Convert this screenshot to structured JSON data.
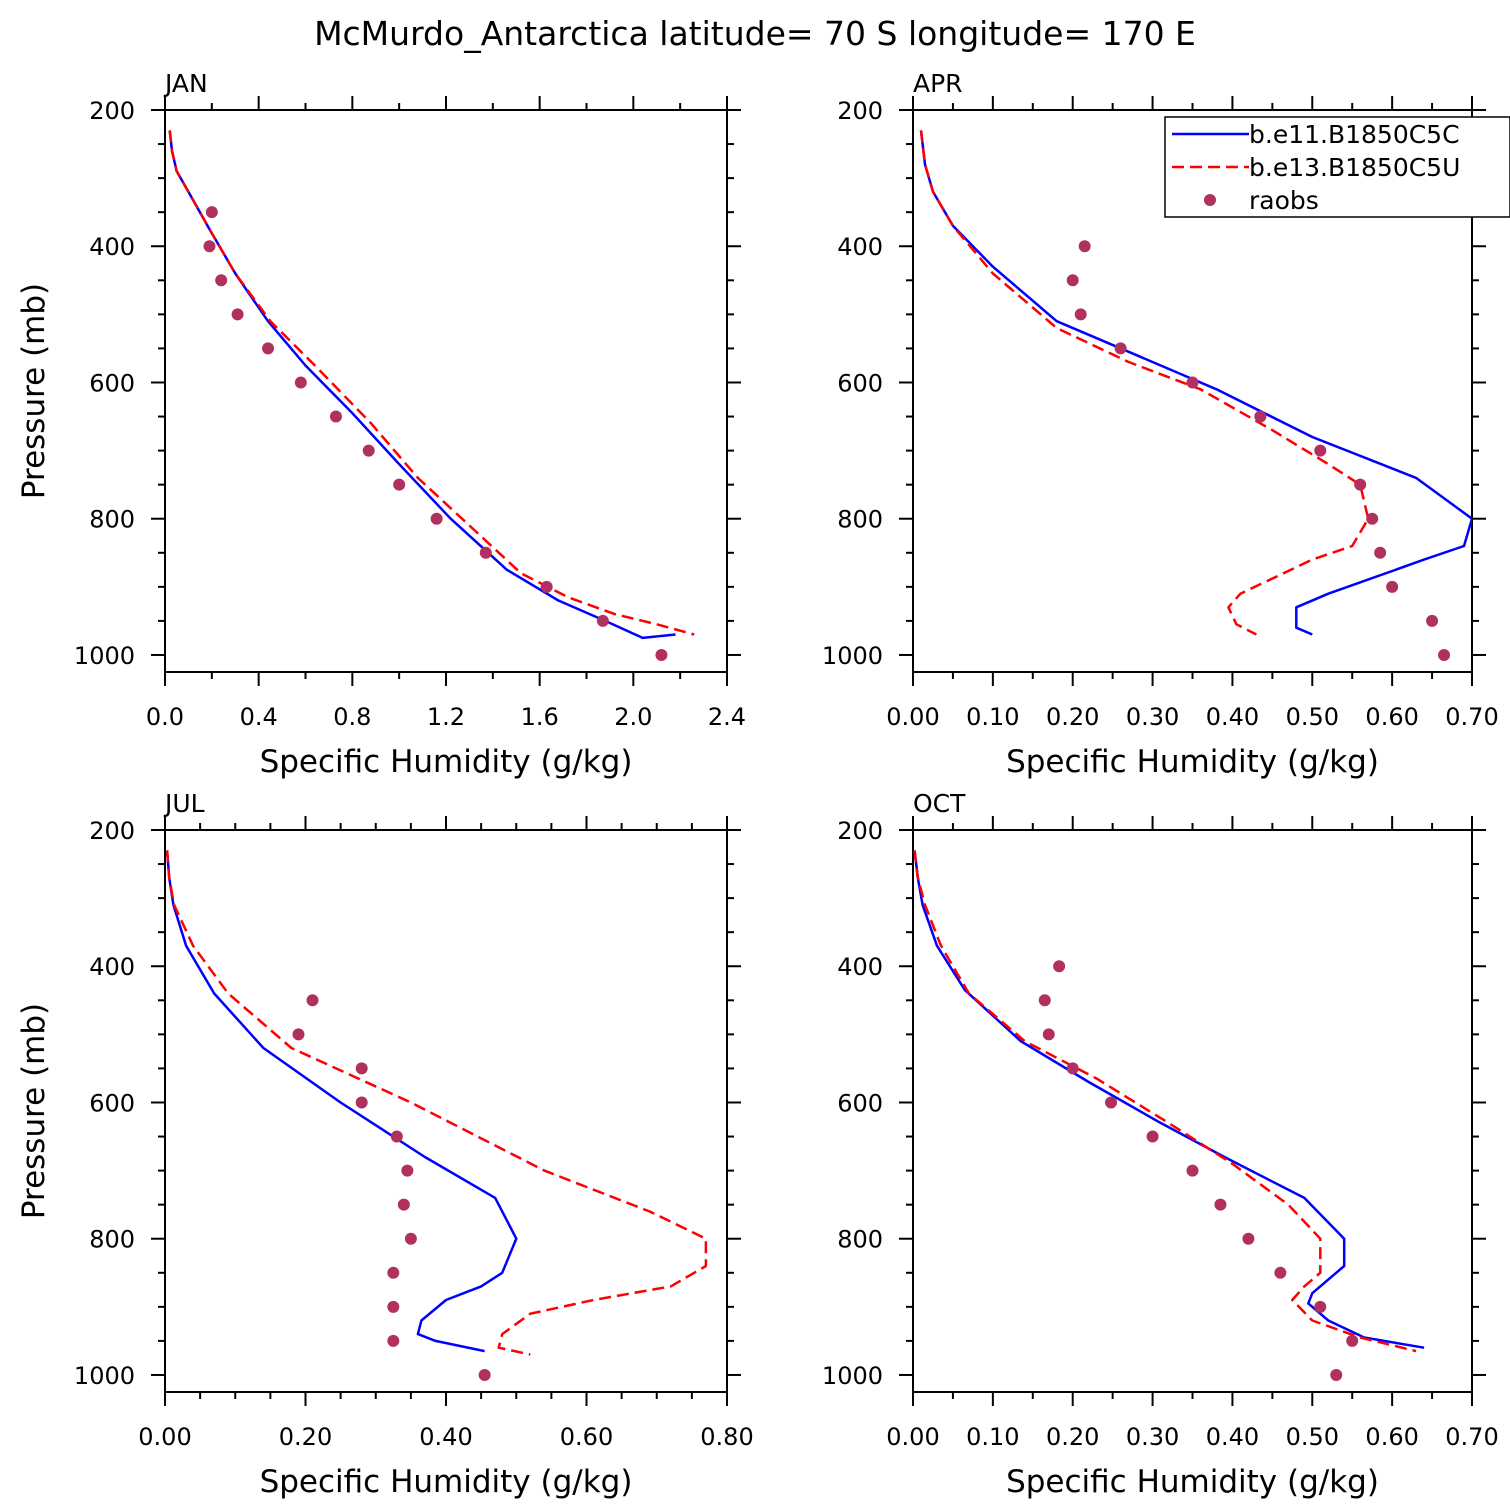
{
  "title": "McMurdo_Antarctica  latitude= 70 S longitude= 170 E",
  "colors": {
    "model1": "#0000ff",
    "model2": "#ff0000",
    "raobs": "#b03060"
  },
  "legend": {
    "placement": "top-right of APR panel",
    "entries": [
      {
        "label": "b.e11.B1850C5C",
        "style": "solid",
        "color": "#0000ff"
      },
      {
        "label": "b.e13.B1850C5U",
        "style": "dashed",
        "color": "#ff0000"
      },
      {
        "label": "raobs",
        "style": "marker",
        "color": "#b03060"
      }
    ]
  },
  "chart_data": [
    {
      "type": "line",
      "panel": "JAN",
      "xlabel": "Specific Humidity (g/kg)",
      "ylabel": "Pressure (mb)",
      "xlim": [
        0,
        2.4
      ],
      "ylim": [
        200,
        1025
      ],
      "y_inverted": true,
      "xticks": [
        "0.0",
        "0.4",
        "0.8",
        "1.2",
        "1.6",
        "2.0",
        "2.4"
      ],
      "yticks": [
        "200",
        "400",
        "600",
        "800",
        "1000"
      ],
      "series": [
        {
          "name": "b.e11.B1850C5C",
          "style": "solid",
          "x": [
            0.02,
            0.03,
            0.05,
            0.1,
            0.19,
            0.3,
            0.44,
            0.6,
            0.8,
            1.0,
            1.22,
            1.46,
            1.68,
            1.88,
            2.04,
            2.18
          ],
          "y": [
            230,
            260,
            290,
            320,
            375,
            440,
            510,
            575,
            645,
            720,
            800,
            875,
            920,
            950,
            975,
            970
          ]
        },
        {
          "name": "b.e13.B1850C5U",
          "style": "dashed",
          "x": [
            0.02,
            0.03,
            0.05,
            0.1,
            0.19,
            0.3,
            0.45,
            0.64,
            0.88,
            1.08,
            1.3,
            1.52,
            1.72,
            1.92,
            2.1,
            2.26
          ],
          "y": [
            230,
            260,
            290,
            320,
            375,
            440,
            510,
            575,
            660,
            740,
            810,
            880,
            915,
            940,
            955,
            970
          ]
        },
        {
          "name": "raobs",
          "style": "marker",
          "x": [
            0.2,
            0.19,
            0.24,
            0.31,
            0.44,
            0.58,
            0.73,
            0.87,
            1.0,
            1.16,
            1.37,
            1.63,
            1.87,
            2.12
          ],
          "y": [
            350,
            400,
            450,
            500,
            550,
            600,
            650,
            700,
            750,
            800,
            850,
            900,
            950,
            1000
          ]
        }
      ]
    },
    {
      "type": "line",
      "panel": "APR",
      "xlabel": "Specific Humidity (g/kg)",
      "ylabel": "",
      "xlim": [
        0,
        0.7
      ],
      "ylim": [
        200,
        1025
      ],
      "y_inverted": true,
      "xticks": [
        "0.00",
        "0.10",
        "0.20",
        "0.30",
        "0.40",
        "0.50",
        "0.60",
        "0.70"
      ],
      "yticks": [
        "200",
        "400",
        "600",
        "800",
        "1000"
      ],
      "series": [
        {
          "name": "b.e11.B1850C5C",
          "style": "solid",
          "x": [
            0.01,
            0.015,
            0.025,
            0.05,
            0.1,
            0.18,
            0.28,
            0.38,
            0.5,
            0.63,
            0.7,
            0.69,
            0.64,
            0.52,
            0.48,
            0.48,
            0.5
          ],
          "y": [
            230,
            280,
            320,
            370,
            430,
            510,
            560,
            610,
            680,
            740,
            800,
            840,
            860,
            910,
            930,
            960,
            970
          ]
        },
        {
          "name": "b.e13.B1850C5U",
          "style": "dashed",
          "x": [
            0.01,
            0.015,
            0.025,
            0.05,
            0.1,
            0.18,
            0.27,
            0.36,
            0.45,
            0.52,
            0.56,
            0.57,
            0.55,
            0.5,
            0.41,
            0.395,
            0.405,
            0.43
          ],
          "y": [
            230,
            280,
            320,
            370,
            440,
            520,
            570,
            610,
            670,
            720,
            750,
            800,
            840,
            860,
            910,
            930,
            955,
            970
          ]
        },
        {
          "name": "raobs",
          "style": "marker",
          "x": [
            0.215,
            0.2,
            0.21,
            0.26,
            0.35,
            0.435,
            0.51,
            0.56,
            0.575,
            0.585,
            0.6,
            0.65,
            0.665
          ],
          "y": [
            400,
            450,
            500,
            550,
            600,
            650,
            700,
            750,
            800,
            850,
            900,
            950,
            1000
          ]
        }
      ]
    },
    {
      "type": "line",
      "panel": "JUL",
      "xlabel": "Specific Humidity (g/kg)",
      "ylabel": "Pressure (mb)",
      "xlim": [
        0,
        0.8
      ],
      "ylim": [
        200,
        1025
      ],
      "y_inverted": true,
      "xticks": [
        "0.00",
        "0.20",
        "0.40",
        "0.60",
        "0.80"
      ],
      "yticks": [
        "200",
        "400",
        "600",
        "800",
        "1000"
      ],
      "series": [
        {
          "name": "b.e11.B1850C5C",
          "style": "solid",
          "x": [
            0.003,
            0.006,
            0.012,
            0.03,
            0.07,
            0.14,
            0.25,
            0.37,
            0.47,
            0.5,
            0.48,
            0.45,
            0.4,
            0.365,
            0.36,
            0.385,
            0.455
          ],
          "y": [
            230,
            270,
            310,
            370,
            440,
            520,
            600,
            680,
            740,
            800,
            850,
            870,
            890,
            920,
            940,
            950,
            965
          ]
        },
        {
          "name": "b.e13.B1850C5U",
          "style": "dashed",
          "x": [
            0.003,
            0.006,
            0.013,
            0.04,
            0.09,
            0.18,
            0.35,
            0.54,
            0.69,
            0.77,
            0.77,
            0.72,
            0.61,
            0.52,
            0.48,
            0.475,
            0.52
          ],
          "y": [
            230,
            270,
            310,
            370,
            440,
            520,
            600,
            700,
            760,
            800,
            840,
            870,
            890,
            910,
            940,
            960,
            970
          ]
        },
        {
          "name": "raobs",
          "style": "marker",
          "x": [
            0.21,
            0.19,
            0.28,
            0.28,
            0.33,
            0.345,
            0.34,
            0.35,
            0.325,
            0.325,
            0.325,
            0.455
          ],
          "y": [
            450,
            500,
            550,
            600,
            650,
            700,
            750,
            800,
            850,
            900,
            950,
            1000
          ]
        }
      ]
    },
    {
      "type": "line",
      "panel": "OCT",
      "xlabel": "Specific Humidity (g/kg)",
      "ylabel": "",
      "xlim": [
        0,
        0.7
      ],
      "ylim": [
        200,
        1025
      ],
      "y_inverted": true,
      "xticks": [
        "0.00",
        "0.10",
        "0.20",
        "0.30",
        "0.40",
        "0.50",
        "0.60",
        "0.70"
      ],
      "yticks": [
        "200",
        "400",
        "600",
        "800",
        "1000"
      ],
      "series": [
        {
          "name": "b.e11.B1850C5C",
          "style": "solid",
          "x": [
            0.002,
            0.006,
            0.012,
            0.03,
            0.065,
            0.135,
            0.22,
            0.31,
            0.39,
            0.49,
            0.54,
            0.54,
            0.5,
            0.495,
            0.52,
            0.565,
            0.64
          ],
          "y": [
            230,
            270,
            310,
            370,
            435,
            510,
            570,
            630,
            680,
            740,
            800,
            840,
            880,
            895,
            920,
            945,
            960
          ]
        },
        {
          "name": "b.e13.B1850C5U",
          "style": "dashed",
          "x": [
            0.002,
            0.006,
            0.015,
            0.035,
            0.07,
            0.14,
            0.23,
            0.32,
            0.4,
            0.47,
            0.51,
            0.51,
            0.49,
            0.475,
            0.5,
            0.56,
            0.63
          ],
          "y": [
            230,
            270,
            310,
            370,
            440,
            510,
            565,
            630,
            690,
            750,
            800,
            850,
            870,
            890,
            920,
            945,
            965
          ]
        },
        {
          "name": "raobs",
          "style": "marker",
          "x": [
            0.183,
            0.165,
            0.17,
            0.2,
            0.248,
            0.3,
            0.35,
            0.385,
            0.42,
            0.46,
            0.51,
            0.55,
            0.53
          ],
          "y": [
            400,
            450,
            500,
            550,
            600,
            650,
            700,
            750,
            800,
            850,
            900,
            950,
            1000
          ]
        }
      ]
    }
  ]
}
